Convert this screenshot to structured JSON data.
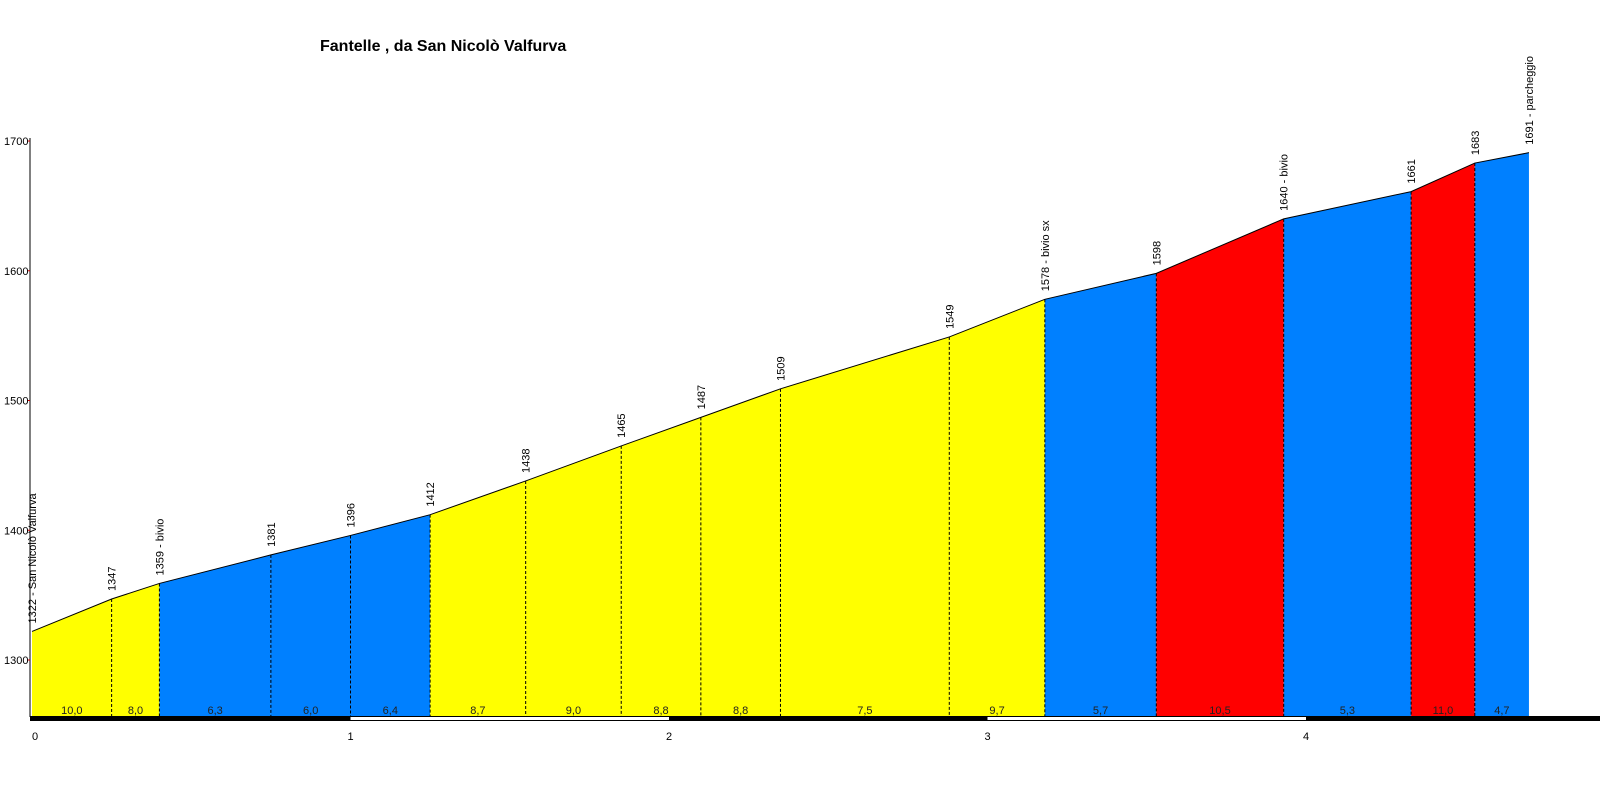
{
  "chart_data": {
    "type": "area",
    "title": "Fantelle , da San Nicolò Valfurva",
    "xlabel": "",
    "ylabel": "",
    "xlim": [
      0,
      5
    ],
    "ylim": [
      1260,
      1700
    ],
    "y_ticks": [
      "1300",
      "1400",
      "1500",
      "1600",
      "1700"
    ],
    "x_ticks": [
      "0",
      "1",
      "2",
      "3",
      "4"
    ],
    "grid": false,
    "points": [
      {
        "x": 0.0,
        "elev": 1322,
        "label": "1322 - San Nicolò Valfurva"
      },
      {
        "x": 0.25,
        "elev": 1347,
        "label": "1347"
      },
      {
        "x": 0.4,
        "elev": 1359,
        "label": "1359 - bivio"
      },
      {
        "x": 0.75,
        "elev": 1381,
        "label": "1381"
      },
      {
        "x": 1.0,
        "elev": 1396,
        "label": "1396"
      },
      {
        "x": 1.25,
        "elev": 1412,
        "label": "1412"
      },
      {
        "x": 1.55,
        "elev": 1438,
        "label": "1438"
      },
      {
        "x": 1.85,
        "elev": 1465,
        "label": "1465"
      },
      {
        "x": 2.1,
        "elev": 1487,
        "label": "1487"
      },
      {
        "x": 2.35,
        "elev": 1509,
        "label": "1509"
      },
      {
        "x": 2.88,
        "elev": 1549,
        "label": "1549"
      },
      {
        "x": 3.18,
        "elev": 1578,
        "label": "1578 - bivio sx"
      },
      {
        "x": 3.53,
        "elev": 1598,
        "label": "1598"
      },
      {
        "x": 3.93,
        "elev": 1640,
        "label": "1640 - bivio"
      },
      {
        "x": 4.33,
        "elev": 1661,
        "label": "1661"
      },
      {
        "x": 4.53,
        "elev": 1683,
        "label": "1683"
      },
      {
        "x": 4.7,
        "elev": 1691,
        "label": "1691 - parcheggio"
      }
    ],
    "segments": [
      {
        "gradient": "10,0",
        "color": "#ffff00"
      },
      {
        "gradient": "8,0",
        "color": "#ffff00"
      },
      {
        "gradient": "6,3",
        "color": "#0080ff"
      },
      {
        "gradient": "6,0",
        "color": "#0080ff"
      },
      {
        "gradient": "6,4",
        "color": "#0080ff"
      },
      {
        "gradient": "8,7",
        "color": "#ffff00"
      },
      {
        "gradient": "9,0",
        "color": "#ffff00"
      },
      {
        "gradient": "8,8",
        "color": "#ffff00"
      },
      {
        "gradient": "8,8",
        "color": "#ffff00"
      },
      {
        "gradient": "7,5",
        "color": "#ffff00"
      },
      {
        "gradient": "9,7",
        "color": "#ffff00"
      },
      {
        "gradient": "5,7",
        "color": "#0080ff"
      },
      {
        "gradient": "10,5",
        "color": "#ff0000"
      },
      {
        "gradient": "5,3",
        "color": "#0080ff"
      },
      {
        "gradient": "11,0",
        "color": "#ff0000"
      },
      {
        "gradient": "4,7",
        "color": "#0080ff"
      }
    ]
  }
}
